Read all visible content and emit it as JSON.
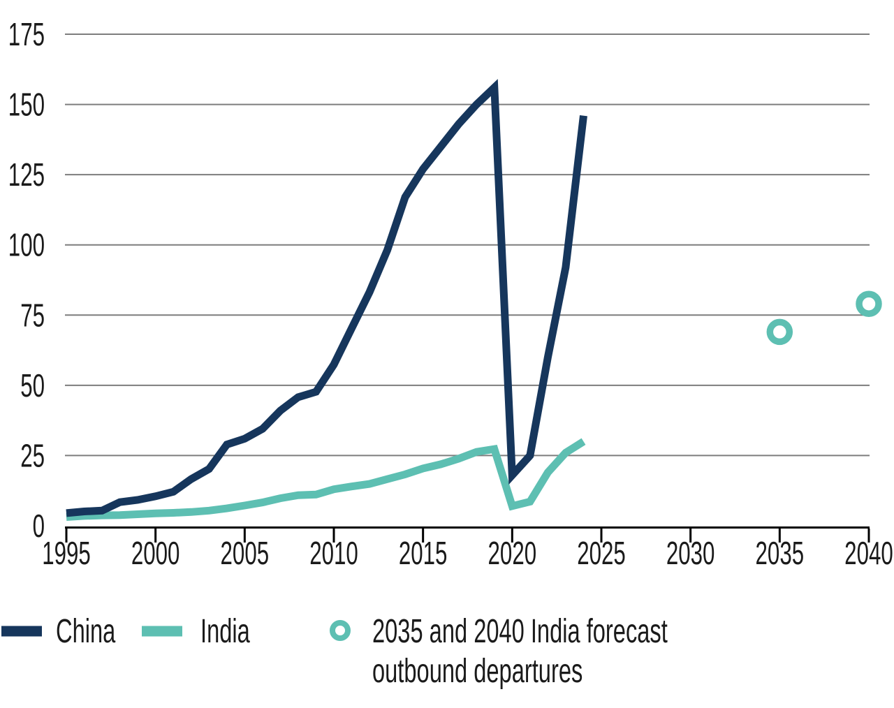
{
  "chart_data": {
    "type": "line",
    "x": [
      1995,
      1996,
      1997,
      1998,
      1999,
      2000,
      2001,
      2002,
      2003,
      2004,
      2005,
      2006,
      2007,
      2008,
      2009,
      2010,
      2011,
      2012,
      2013,
      2014,
      2015,
      2016,
      2017,
      2018,
      2019,
      2020,
      2021,
      2022,
      2023,
      2024
    ],
    "series": [
      {
        "name": "China",
        "color": "#16365c",
        "values": [
          4.5,
          5.1,
          5.4,
          8.4,
          9.2,
          10.5,
          12.1,
          16.6,
          20.2,
          28.9,
          31.0,
          34.5,
          41.0,
          45.8,
          47.7,
          57.4,
          70.3,
          83.2,
          98.2,
          117.0,
          127.0,
          135.0,
          143.0,
          150.0,
          156.0,
          18.0,
          25.0,
          60.0,
          92.0,
          146.0
        ]
      },
      {
        "name": "India",
        "color": "#5dbfb2",
        "values": [
          3.1,
          3.5,
          3.7,
          3.8,
          4.1,
          4.4,
          4.6,
          4.9,
          5.4,
          6.2,
          7.2,
          8.3,
          9.8,
          10.9,
          11.1,
          13.0,
          14.0,
          14.9,
          16.6,
          18.3,
          20.4,
          21.9,
          23.9,
          26.3,
          27.3,
          7.0,
          8.6,
          19.0,
          26.0,
          30.0
        ]
      }
    ],
    "forecast_points": [
      {
        "year": 2035,
        "value": 69
      },
      {
        "year": 2040,
        "value": 79
      }
    ],
    "yticks": [
      0,
      25,
      50,
      75,
      100,
      125,
      150,
      175
    ],
    "xticks": [
      1995,
      2000,
      2005,
      2010,
      2015,
      2020,
      2025,
      2030,
      2035,
      2040
    ],
    "ylim": [
      0,
      175
    ],
    "grid": true,
    "legend_position": "bottom",
    "legend": {
      "china": "China",
      "india": "India",
      "forecast_line1": "2035 and 2040 India forecast",
      "forecast_line2": "outbound departures"
    },
    "colors": {
      "grid": "#7d7d7d",
      "axis": "#000000",
      "text": "#1a1a1a",
      "background": "#ffffff",
      "forecast_marker": "#5dbfb2"
    }
  }
}
